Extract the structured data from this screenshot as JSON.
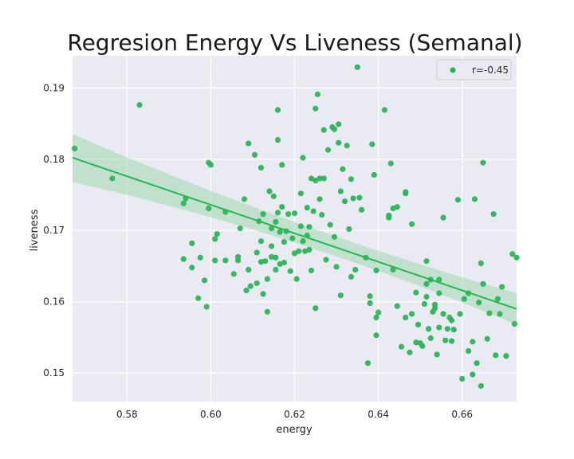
{
  "chart_data": {
    "type": "scatter",
    "title": "Regresion Energy Vs Liveness (Semanal)",
    "xlabel": "energy",
    "ylabel": "liveness",
    "xlim": [
      0.567,
      0.673
    ],
    "ylim": [
      0.146,
      0.1945
    ],
    "xticks": [
      "0.58",
      "0.60",
      "0.62",
      "0.64",
      "0.66"
    ],
    "yticks": [
      "0.15",
      "0.16",
      "0.17",
      "0.18",
      "0.19"
    ],
    "grid": true,
    "legend_position": "top-right",
    "colors": {
      "point": "#2db45a",
      "line": "#27b64f",
      "band": "#9fd9b0",
      "background": "#eaeaf2",
      "grid": "#ffffff"
    },
    "legend": [
      {
        "label": "r=-0.45"
      }
    ],
    "regression": {
      "x": [
        0.567,
        0.673
      ],
      "y": [
        0.1802,
        0.159
      ],
      "ci_start": [
        0.1768,
        0.1835
      ],
      "ci_mid": [
        0.1683,
        0.1712
      ],
      "ci_end": [
        0.1568,
        0.1612
      ]
    },
    "series": [
      {
        "points": [
          [
            0.5675,
            0.1815
          ],
          [
            0.5765,
            0.1773
          ],
          [
            0.583,
            0.1876
          ],
          [
            0.5935,
            0.1738
          ],
          [
            0.594,
            0.1745
          ],
          [
            0.5935,
            0.166
          ],
          [
            0.5955,
            0.1682
          ],
          [
            0.5955,
            0.1648
          ],
          [
            0.597,
            0.1605
          ],
          [
            0.5975,
            0.1662
          ],
          [
            0.5985,
            0.163
          ],
          [
            0.599,
            0.1593
          ],
          [
            0.5995,
            0.1795
          ],
          [
            0.6,
            0.1792
          ],
          [
            0.5995,
            0.1731
          ],
          [
            0.601,
            0.1688
          ],
          [
            0.601,
            0.1658
          ],
          [
            0.6015,
            0.1695
          ],
          [
            0.6035,
            0.1726
          ],
          [
            0.6035,
            0.1658
          ],
          [
            0.6055,
            0.1639
          ],
          [
            0.6065,
            0.1663
          ],
          [
            0.6065,
            0.1658
          ],
          [
            0.607,
            0.1703
          ],
          [
            0.608,
            0.1744
          ],
          [
            0.6085,
            0.1616
          ],
          [
            0.609,
            0.1822
          ],
          [
            0.609,
            0.1645
          ],
          [
            0.6095,
            0.1622
          ],
          [
            0.6105,
            0.1806
          ],
          [
            0.611,
            0.1669
          ],
          [
            0.611,
            0.1626
          ],
          [
            0.6115,
            0.1713
          ],
          [
            0.612,
            0.1788
          ],
          [
            0.612,
            0.1685
          ],
          [
            0.612,
            0.1656
          ],
          [
            0.6125,
            0.1611
          ],
          [
            0.6125,
            0.1723
          ],
          [
            0.613,
            0.1657
          ],
          [
            0.6135,
            0.1632
          ],
          [
            0.6135,
            0.1586
          ],
          [
            0.614,
            0.1755
          ],
          [
            0.6145,
            0.1703
          ],
          [
            0.6145,
            0.1678
          ],
          [
            0.6145,
            0.1663
          ],
          [
            0.615,
            0.1748
          ],
          [
            0.6155,
            0.1712
          ],
          [
            0.6155,
            0.1662
          ],
          [
            0.6155,
            0.1645
          ],
          [
            0.616,
            0.1869
          ],
          [
            0.616,
            0.1827
          ],
          [
            0.616,
            0.1725
          ],
          [
            0.6165,
            0.1698
          ],
          [
            0.6165,
            0.1653
          ],
          [
            0.617,
            0.1792
          ],
          [
            0.617,
            0.1733
          ],
          [
            0.6175,
            0.1684
          ],
          [
            0.6175,
            0.1655
          ],
          [
            0.618,
            0.1699
          ],
          [
            0.6185,
            0.1723
          ],
          [
            0.619,
            0.1643
          ],
          [
            0.6195,
            0.1689
          ],
          [
            0.62,
            0.1724
          ],
          [
            0.62,
            0.1668
          ],
          [
            0.6205,
            0.1632
          ],
          [
            0.621,
            0.1671
          ],
          [
            0.6215,
            0.1752
          ],
          [
            0.6215,
            0.1706
          ],
          [
            0.622,
            0.1802
          ],
          [
            0.622,
            0.1685
          ],
          [
            0.6225,
            0.1671
          ],
          [
            0.623,
            0.1732
          ],
          [
            0.623,
            0.1693
          ],
          [
            0.6235,
            0.1705
          ],
          [
            0.6235,
            0.1673
          ],
          [
            0.624,
            0.1773
          ],
          [
            0.624,
            0.1644
          ],
          [
            0.6245,
            0.1727
          ],
          [
            0.625,
            0.1591
          ],
          [
            0.625,
            0.1871
          ],
          [
            0.625,
            0.177
          ],
          [
            0.6255,
            0.1891
          ],
          [
            0.626,
            0.1773
          ],
          [
            0.626,
            0.1744
          ],
          [
            0.6265,
            0.1722
          ],
          [
            0.627,
            0.1841
          ],
          [
            0.627,
            0.1773
          ],
          [
            0.6275,
            0.1659
          ],
          [
            0.628,
            0.1813
          ],
          [
            0.6285,
            0.1708
          ],
          [
            0.629,
            0.1845
          ],
          [
            0.6295,
            0.1842
          ],
          [
            0.6295,
            0.1691
          ],
          [
            0.63,
            0.1649
          ],
          [
            0.6305,
            0.1849
          ],
          [
            0.6305,
            0.1823
          ],
          [
            0.631,
            0.1755
          ],
          [
            0.631,
            0.1609
          ],
          [
            0.6315,
            0.1786
          ],
          [
            0.632,
            0.1741
          ],
          [
            0.6325,
            0.1819
          ],
          [
            0.633,
            0.1702
          ],
          [
            0.6335,
            0.1772
          ],
          [
            0.6335,
            0.1635
          ],
          [
            0.634,
            0.1745
          ],
          [
            0.635,
            0.1929
          ],
          [
            0.6345,
            0.1645
          ],
          [
            0.6355,
            0.1746
          ],
          [
            0.636,
            0.1729
          ],
          [
            0.637,
            0.1662
          ],
          [
            0.6375,
            0.1514
          ],
          [
            0.638,
            0.1608
          ],
          [
            0.638,
            0.1598
          ],
          [
            0.6385,
            0.1821
          ],
          [
            0.639,
            0.1778
          ],
          [
            0.6395,
            0.1553
          ],
          [
            0.6395,
            0.1578
          ],
          [
            0.64,
            0.1585
          ],
          [
            0.6395,
            0.1644
          ],
          [
            0.6415,
            0.1869
          ],
          [
            0.6425,
            0.1721
          ],
          [
            0.6425,
            0.1718
          ],
          [
            0.643,
            0.1794
          ],
          [
            0.6435,
            0.1731
          ],
          [
            0.6435,
            0.1645
          ],
          [
            0.6445,
            0.1733
          ],
          [
            0.6445,
            0.1594
          ],
          [
            0.6465,
            0.1752
          ],
          [
            0.6465,
            0.1754
          ],
          [
            0.6475,
            0.1529
          ],
          [
            0.648,
            0.1709
          ],
          [
            0.648,
            0.1583
          ],
          [
            0.649,
            0.1543
          ],
          [
            0.649,
            0.1613
          ],
          [
            0.6495,
            0.1568
          ],
          [
            0.65,
            0.1542
          ],
          [
            0.651,
            0.1597
          ],
          [
            0.6515,
            0.1657
          ],
          [
            0.652,
            0.1562
          ],
          [
            0.6525,
            0.1549
          ],
          [
            0.653,
            0.1586
          ],
          [
            0.6535,
            0.1596
          ],
          [
            0.6545,
            0.1612
          ],
          [
            0.654,
            0.1526
          ],
          [
            0.6545,
            0.1564
          ],
          [
            0.6555,
            0.1583
          ],
          [
            0.656,
            0.1546
          ],
          [
            0.657,
            0.1578
          ],
          [
            0.6575,
            0.1574
          ],
          [
            0.658,
            0.1561
          ],
          [
            0.659,
            0.1743
          ],
          [
            0.6595,
            0.1583
          ],
          [
            0.66,
            0.1492
          ],
          [
            0.6605,
            0.1604
          ],
          [
            0.6625,
            0.1498
          ],
          [
            0.663,
            0.1744
          ],
          [
            0.6635,
            0.1514
          ],
          [
            0.6645,
            0.1482
          ],
          [
            0.6645,
            0.1654
          ],
          [
            0.665,
            0.1795
          ],
          [
            0.665,
            0.1625
          ],
          [
            0.666,
            0.1548
          ],
          [
            0.6675,
            0.1723
          ],
          [
            0.668,
            0.1525
          ],
          [
            0.669,
            0.1583
          ],
          [
            0.6695,
            0.1621
          ],
          [
            0.6705,
            0.1524
          ],
          [
            0.672,
            0.1667
          ],
          [
            0.673,
            0.1662
          ],
          [
            0.6725,
            0.1569
          ],
          [
            0.6515,
            0.1625
          ],
          [
            0.6525,
            0.1631
          ],
          [
            0.6555,
            0.1718
          ],
          [
            0.6575,
            0.1545
          ],
          [
            0.6615,
            0.1531
          ],
          [
            0.6625,
            0.1544
          ],
          [
            0.664,
            0.1599
          ],
          [
            0.6665,
            0.1584
          ],
          [
            0.6685,
            0.1604
          ],
          [
            0.6455,
            0.1537
          ],
          [
            0.6465,
            0.1578
          ],
          [
            0.6505,
            0.1538
          ],
          [
            0.6515,
            0.1607
          ],
          [
            0.6535,
            0.1591
          ],
          [
            0.6545,
            0.1631
          ],
          [
            0.6565,
            0.1562
          ],
          [
            0.6615,
            0.1612
          ]
        ]
      }
    ]
  }
}
